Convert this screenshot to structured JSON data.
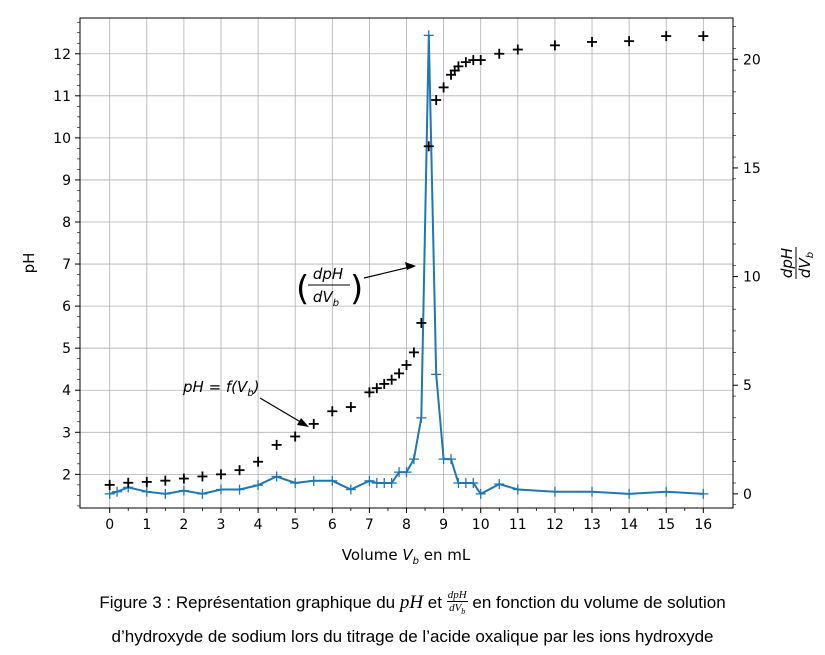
{
  "chart_data": {
    "type": "scatter+line",
    "xlabel": "Volume V_b en mL",
    "ylabel_left": "pH",
    "ylabel_right": "dpH/dV_b",
    "xlim": [
      -0.8,
      16.8
    ],
    "ylim_left": [
      1.2,
      12.85
    ],
    "ylim_right": [
      -0.65,
      21.9
    ],
    "x_ticks": [
      0,
      1,
      2,
      3,
      4,
      5,
      6,
      7,
      8,
      9,
      10,
      11,
      12,
      13,
      14,
      15,
      16
    ],
    "y_left_ticks": [
      2,
      3,
      4,
      5,
      6,
      7,
      8,
      9,
      10,
      11,
      12
    ],
    "y_right_ticks": [
      0,
      5,
      10,
      15,
      20
    ],
    "grid": true,
    "series": [
      {
        "axis": "left",
        "marker": "plus",
        "color": "#000000",
        "x": [
          0,
          0.5,
          1,
          1.5,
          2,
          2.5,
          3,
          3.5,
          4,
          4.5,
          5,
          5.5,
          6,
          6.5,
          7,
          7.2,
          7.4,
          7.6,
          7.8,
          8,
          8.2,
          8.4,
          8.6,
          8.8,
          9,
          9.2,
          9.3,
          9.4,
          9.6,
          9.8,
          10,
          10.5,
          11,
          12,
          13,
          14,
          15,
          16
        ],
        "y": [
          1.75,
          1.8,
          1.82,
          1.85,
          1.9,
          1.95,
          2.0,
          2.1,
          2.3,
          2.7,
          2.9,
          3.2,
          3.5,
          3.6,
          3.95,
          4.05,
          4.15,
          4.25,
          4.4,
          4.6,
          4.9,
          5.6,
          9.8,
          10.9,
          11.2,
          11.5,
          11.6,
          11.7,
          11.8,
          11.85,
          11.85,
          12.0,
          12.1,
          12.2,
          12.28,
          12.3,
          12.42,
          12.42
        ]
      },
      {
        "axis": "right",
        "marker": "plus-line",
        "color": "#1f77b4",
        "x": [
          0,
          0.2,
          0.5,
          1,
          1.5,
          2,
          2.5,
          3,
          3.5,
          4,
          4.5,
          5,
          5.5,
          6,
          6.5,
          7,
          7.2,
          7.4,
          7.6,
          7.8,
          8,
          8.2,
          8.4,
          8.6,
          8.8,
          9,
          9.2,
          9.4,
          9.6,
          9.8,
          10,
          10.5,
          11,
          12,
          13,
          14,
          15,
          16
        ],
        "y": [
          0,
          0.1,
          0.3,
          0.1,
          0,
          0.15,
          0,
          0.2,
          0.2,
          0.4,
          0.8,
          0.5,
          0.6,
          0.6,
          0.2,
          0.6,
          0.5,
          0.5,
          0.5,
          1.0,
          1.0,
          1.6,
          3.5,
          21.1,
          5.5,
          1.6,
          1.6,
          0.5,
          0.5,
          0.5,
          0,
          0.45,
          0.2,
          0.1,
          0.1,
          0,
          0.1,
          0
        ]
      }
    ],
    "annotations": [
      {
        "text": "pH = f(V_b)"
      },
      {
        "text": "(dpH/dV_b)"
      }
    ]
  },
  "labels": {
    "xlabel_pre": "Volume ",
    "xlabel_var": "V",
    "xlabel_sub": "b",
    "xlabel_post": " en mL",
    "ylabel_left": "pH",
    "ylabel_right_num": "dpH",
    "ylabel_right_den": "dV",
    "ylabel_right_sub": "b",
    "annot1_pre": "pH = f(V",
    "annot1_sub": "b",
    "annot1_post": ")",
    "annot2_num": "dpH",
    "annot2_den": "dV",
    "annot2_sub": "b"
  },
  "caption": {
    "line1_a": "Figure 3 : Représentation graphique du ",
    "line1_ph": "pH",
    "line1_b": " et ",
    "line1_num": "dpH",
    "line1_den": "dV",
    "line1_den_sub": "b",
    "line1_c": " en fonction du volume de solution",
    "line2": "d’hydroxyde de sodium lors du titrage de l’acide oxalique par les ions hydroxyde"
  }
}
